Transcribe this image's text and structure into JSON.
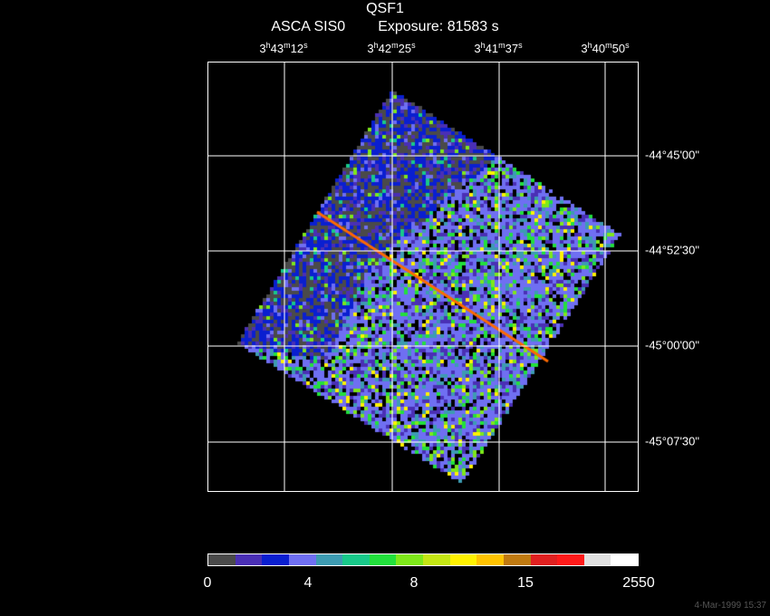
{
  "header": {
    "title": "QSF1",
    "instrument": "ASCA SIS0",
    "exposure": "Exposure: 81583 s"
  },
  "ra_axis": [
    {
      "h": "3",
      "m": "43",
      "s": "12"
    },
    {
      "h": "3",
      "m": "42",
      "s": "25"
    },
    {
      "h": "3",
      "m": "41",
      "s": "37"
    },
    {
      "h": "3",
      "m": "40",
      "s": "50"
    }
  ],
  "dec_axis": [
    "-44°45'00\"",
    "-44°52'30\"",
    "-45°00'00\"",
    "-45°07'30\""
  ],
  "colorbar": {
    "labels": [
      "0",
      "4",
      "8",
      "15",
      "2550"
    ],
    "colors": [
      "#4a4a4a",
      "#4a2fb5",
      "#0a1fd0",
      "#6f6ff2",
      "#3d9bb2",
      "#18c98a",
      "#22e03c",
      "#7ee81a",
      "#c4e614",
      "#fff200",
      "#ffc400",
      "#c07a10",
      "#e02020",
      "#ff1a1a",
      "#e0e0e0",
      "#ffffff"
    ]
  },
  "timestamp": "4-Mar-1999 15:37",
  "image": {
    "description_colors": {
      "background": "#000000",
      "grid": "#ffffff",
      "bright_streak": "#ff6a00"
    }
  }
}
